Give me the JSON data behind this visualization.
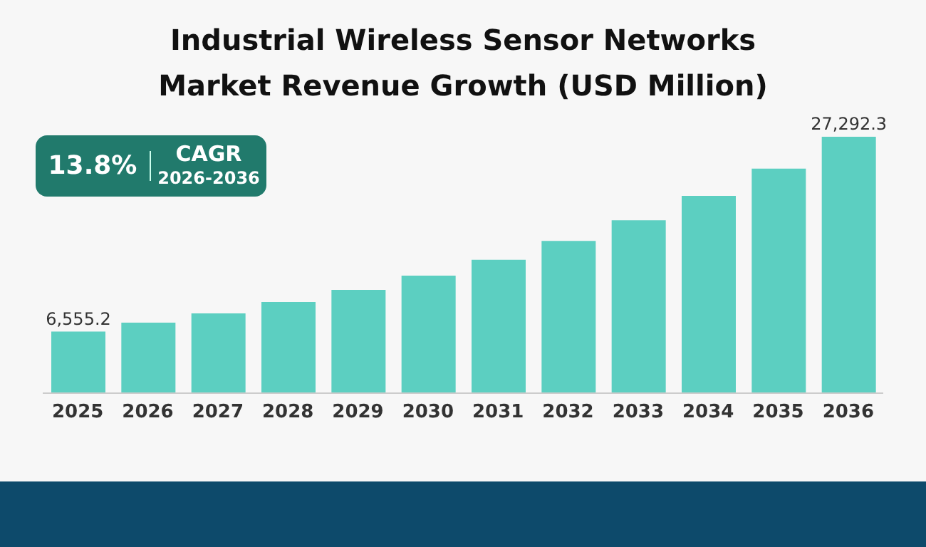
{
  "chart_data": {
    "type": "bar",
    "title": "Industrial Wireless Sensor Networks Market Revenue Growth (USD Million)",
    "categories": [
      "2025",
      "2026",
      "2027",
      "2028",
      "2029",
      "2030",
      "2031",
      "2032",
      "2033",
      "2034",
      "2035",
      "2036"
    ],
    "values": [
      6555.2,
      7500,
      8500,
      9700,
      11000,
      12500,
      14200,
      16200,
      18400,
      21000,
      23900,
      27292.3
    ],
    "value_labels": [
      "6,555.2",
      null,
      null,
      null,
      null,
      null,
      null,
      null,
      null,
      null,
      null,
      "27,292.3"
    ],
    "color": "#5ccfc1",
    "annotations": [
      "13.8%",
      "CAGR",
      "2026-2036"
    ]
  }
}
